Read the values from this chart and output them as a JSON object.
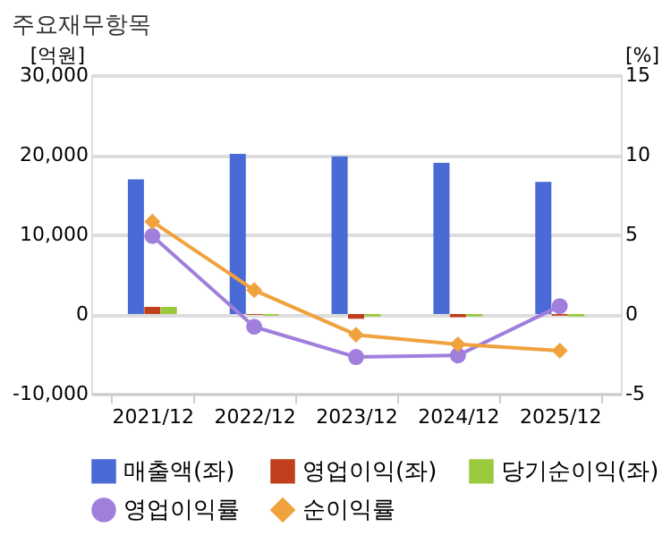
{
  "chart_data": {
    "type": "bar",
    "title": "주요재무항목",
    "categories": [
      "2021/12",
      "2022/12",
      "2023/12",
      "2024/12",
      "2025/12"
    ],
    "ylabel": "[억원]",
    "y2label": "[%]",
    "ylim": [
      -10000,
      30000
    ],
    "yticks": [
      {
        "value": -10000,
        "label": "-10,000"
      },
      0,
      {
        "value": 10000,
        "label": "10,000"
      },
      {
        "value": 20000,
        "label": "20,000"
      },
      {
        "value": 30000,
        "label": "30,000"
      }
    ],
    "y2lim": [
      -5,
      15
    ],
    "y2ticks": [
      -5,
      0,
      5,
      10,
      15
    ],
    "grid": "y",
    "legend": "bottom",
    "series": [
      {
        "name": "매출액(좌)",
        "color": "#4a6bd6",
        "values": [
          16900,
          20100,
          19800,
          19000,
          16600
        ]
      },
      {
        "name": "영업이익(좌)",
        "color": "#c0401e",
        "values": [
          900,
          -100,
          -600,
          -400,
          -200
        ]
      },
      {
        "name": "당기순이익(좌)",
        "color": "#9bc93c",
        "values": [
          900,
          -200,
          -300,
          -300,
          -300
        ]
      },
      {
        "name": "영업이익률",
        "type": "line",
        "axis": "y2",
        "marker": "circle",
        "line_style": "solid",
        "color": "#a07fdc",
        "values": [
          4.9,
          -0.8,
          -2.7,
          -2.6,
          0.5
        ]
      },
      {
        "name": "순이익률",
        "type": "line",
        "axis": "y2",
        "marker": "diamond",
        "line_style": "solid",
        "color": "#f0a23c",
        "values": [
          5.8,
          1.5,
          -1.3,
          -1.9,
          -2.3
        ]
      }
    ]
  }
}
